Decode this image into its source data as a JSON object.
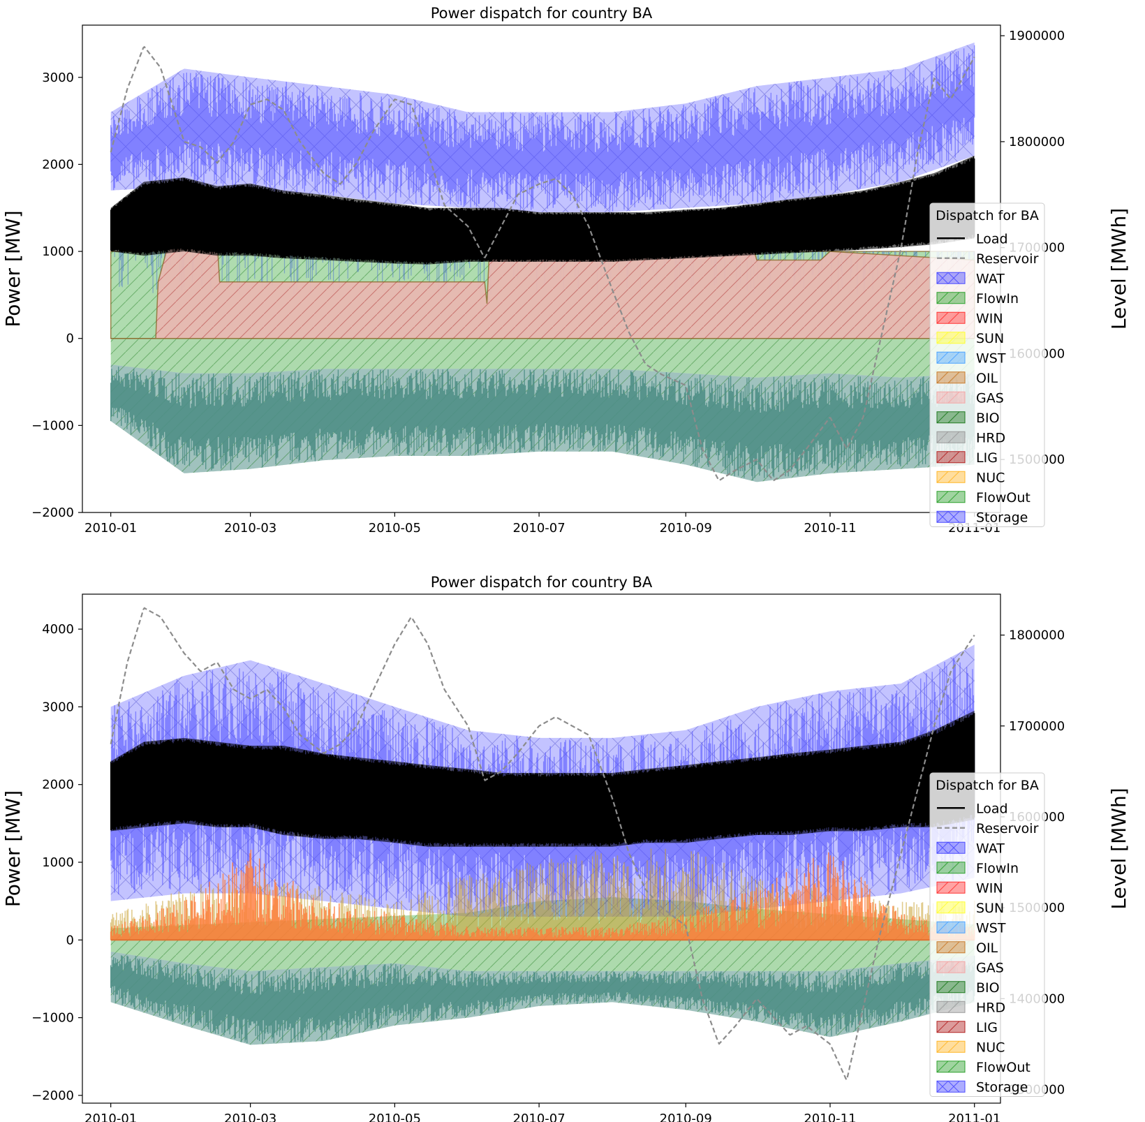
{
  "chart_data": [
    {
      "type": "area",
      "title": "Power dispatch for country BA",
      "ylabel": "Power [MW]",
      "ylabel_right": "Level [MWh]",
      "xlabel": "",
      "x_ticks": [
        "2010-01",
        "2010-03",
        "2010-05",
        "2010-07",
        "2010-09",
        "2010-11",
        "2011-01"
      ],
      "y_ticks": [
        -2000,
        -1000,
        0,
        1000,
        2000,
        3000
      ],
      "y_right_ticks": [
        1500000,
        1600000,
        1700000,
        1800000,
        1900000
      ],
      "xlim": [
        "2009-12-20",
        "2011-01-12"
      ],
      "ylim": [
        -2000,
        3600
      ],
      "ylim_right": [
        1450000,
        1910000
      ],
      "legend_title": "Dispatch for BA",
      "legend_entries": [
        "Load",
        "Reservoir",
        "WAT",
        "FlowIn",
        "WIN",
        "SUN",
        "WST",
        "OIL",
        "GAS",
        "BIO",
        "HRD",
        "LIG",
        "NUC",
        "FlowOut",
        "Storage"
      ],
      "legend_position": "right",
      "colors": {
        "Load": "#000000",
        "Reservoir": "#999999",
        "WAT": "#4a4aff",
        "FlowIn": "#2ca02c",
        "WIN": "#ff3333",
        "SUN": "#ffff33",
        "WST": "#4ba3ff",
        "OIL": "#c97a2b",
        "GAS": "#f4a6a6",
        "BIO": "#1f7a1f",
        "HRD": "#9a9a9a",
        "LIG": "#b22222",
        "NUC": "#ffb627",
        "FlowOut": "#2ca02c",
        "Storage": "#4a4aff"
      },
      "series": [
        {
          "name": "Load",
          "x": [
            "2010-01-01",
            "2010-01-15",
            "2010-02-01",
            "2010-02-15",
            "2010-03-01",
            "2010-03-15",
            "2010-04-01",
            "2010-04-15",
            "2010-05-01",
            "2010-05-15",
            "2010-06-01",
            "2010-06-15",
            "2010-07-01",
            "2010-07-15",
            "2010-08-01",
            "2010-08-15",
            "2010-09-01",
            "2010-09-15",
            "2010-10-01",
            "2010-10-15",
            "2010-11-01",
            "2010-11-15",
            "2010-12-01",
            "2010-12-15",
            "2011-01-01"
          ],
          "upper": [
            1500,
            1800,
            1850,
            1750,
            1780,
            1700,
            1650,
            1600,
            1550,
            1500,
            1500,
            1500,
            1450,
            1450,
            1450,
            1450,
            1480,
            1500,
            1550,
            1600,
            1650,
            1700,
            1800,
            1900,
            2100
          ],
          "lower": [
            1000,
            950,
            1000,
            950,
            950,
            920,
            900,
            880,
            860,
            850,
            880,
            880,
            880,
            880,
            880,
            900,
            920,
            940,
            960,
            980,
            1000,
            1020,
            1050,
            1080,
            1150
          ]
        },
        {
          "name": "Reservoir",
          "x": [
            "2010-01-01",
            "2010-01-08",
            "2010-01-15",
            "2010-01-22",
            "2010-02-01",
            "2010-02-08",
            "2010-02-15",
            "2010-02-22",
            "2010-03-01",
            "2010-03-08",
            "2010-03-15",
            "2010-03-22",
            "2010-04-01",
            "2010-04-08",
            "2010-04-15",
            "2010-04-22",
            "2010-05-01",
            "2010-05-08",
            "2010-05-15",
            "2010-05-22",
            "2010-06-01",
            "2010-06-08",
            "2010-06-15",
            "2010-06-22",
            "2010-07-01",
            "2010-07-08",
            "2010-07-15",
            "2010-07-22",
            "2010-08-01",
            "2010-08-08",
            "2010-08-15",
            "2010-08-22",
            "2010-09-01",
            "2010-09-08",
            "2010-09-15",
            "2010-09-22",
            "2010-10-01",
            "2010-10-08",
            "2010-10-15",
            "2010-10-22",
            "2010-11-01",
            "2010-11-08",
            "2010-11-15",
            "2010-11-22",
            "2010-12-01",
            "2010-12-08",
            "2010-12-15",
            "2010-12-22",
            "2011-01-01"
          ],
          "values": [
            1790000,
            1850000,
            1890000,
            1870000,
            1800000,
            1795000,
            1780000,
            1800000,
            1835000,
            1840000,
            1830000,
            1800000,
            1770000,
            1760000,
            1780000,
            1810000,
            1840000,
            1835000,
            1790000,
            1740000,
            1720000,
            1690000,
            1720000,
            1750000,
            1760000,
            1765000,
            1750000,
            1720000,
            1660000,
            1620000,
            1590000,
            1580000,
            1570000,
            1510000,
            1480000,
            1490000,
            1500000,
            1480000,
            1490000,
            1510000,
            1540000,
            1510000,
            1540000,
            1610000,
            1700000,
            1790000,
            1860000,
            1840000,
            1880000
          ]
        },
        {
          "name": "WAT",
          "x": [
            "2010-01-01",
            "2010-02-01",
            "2010-03-01",
            "2010-04-01",
            "2010-05-01",
            "2010-06-01",
            "2010-07-01",
            "2010-08-01",
            "2010-09-01",
            "2010-10-01",
            "2010-11-01",
            "2010-12-01",
            "2011-01-01"
          ],
          "upper": [
            2600,
            3100,
            3000,
            2900,
            2800,
            2600,
            2600,
            2600,
            2700,
            2900,
            3000,
            3100,
            3400
          ],
          "lower": [
            1700,
            1750,
            1700,
            1650,
            1550,
            1500,
            1450,
            1450,
            1500,
            1550,
            1650,
            1800,
            2100
          ]
        },
        {
          "name": "FlowIn",
          "x": [
            "2010-01-01",
            "2010-01-20",
            "2010-01-21",
            "2010-02-15",
            "2010-02-16",
            "2010-06-09",
            "2010-06-10",
            "2010-09-30",
            "2010-10-01",
            "2010-11-01",
            "2011-01-01"
          ],
          "values": [
            1000,
            1000,
            1050,
            1050,
            1000,
            1000,
            950,
            950,
            1000,
            1000,
            1000
          ]
        },
        {
          "name": "GAS",
          "x": [
            "2010-01-01",
            "2010-01-20",
            "2010-01-21",
            "2010-01-25",
            "2010-02-15",
            "2010-02-16",
            "2010-06-08",
            "2010-06-09",
            "2010-06-10",
            "2010-09-30",
            "2010-10-01",
            "2010-10-28",
            "2010-11-01",
            "2011-01-01"
          ],
          "values": [
            0,
            0,
            650,
            1050,
            1100,
            650,
            650,
            400,
            1000,
            1000,
            900,
            900,
            1000,
            900
          ]
        },
        {
          "name": "FlowOut",
          "x": [
            "2010-01-01",
            "2010-02-01",
            "2010-03-01",
            "2010-04-01",
            "2010-05-01",
            "2010-06-01",
            "2010-07-01",
            "2010-08-01",
            "2010-09-01",
            "2010-10-01",
            "2010-11-01",
            "2010-12-01",
            "2011-01-01"
          ],
          "upper": [
            -300,
            -400,
            -400,
            -350,
            -350,
            -350,
            -350,
            -350,
            -400,
            -450,
            -400,
            -450,
            -400
          ],
          "lower": [
            -950,
            -1550,
            -1500,
            -1400,
            -1350,
            -1350,
            -1300,
            -1300,
            -1450,
            -1650,
            -1550,
            -1500,
            -1450
          ]
        }
      ]
    },
    {
      "type": "area",
      "title": "Power dispatch for country BA",
      "ylabel": "Power [MW]",
      "ylabel_right": "Level [MWh]",
      "xlabel": "",
      "x_ticks": [
        "2010-01",
        "2010-03",
        "2010-05",
        "2010-07",
        "2010-09",
        "2010-11",
        "2011-01"
      ],
      "y_ticks": [
        -2000,
        -1000,
        0,
        1000,
        2000,
        3000,
        4000
      ],
      "y_right_ticks": [
        1300000,
        1400000,
        1500000,
        1600000,
        1700000,
        1800000
      ],
      "xlim": [
        "2009-12-20",
        "2011-01-12"
      ],
      "ylim": [
        -2100,
        4450
      ],
      "ylim_right": [
        1285000,
        1845000
      ],
      "legend_title": "Dispatch for BA",
      "legend_entries": [
        "Load",
        "Reservoir",
        "WAT",
        "FlowIn",
        "WIN",
        "SUN",
        "WST",
        "OIL",
        "GAS",
        "BIO",
        "HRD",
        "LIG",
        "NUC",
        "FlowOut",
        "Storage"
      ],
      "legend_position": "right",
      "colors": {
        "Load": "#000000",
        "Reservoir": "#999999",
        "WAT": "#4a4aff",
        "FlowIn": "#2ca02c",
        "WIN": "#ff3333",
        "SUN": "#ffff33",
        "WST": "#4ba3ff",
        "OIL": "#c97a2b",
        "GAS": "#f4a6a6",
        "BIO": "#1f7a1f",
        "HRD": "#9a9a9a",
        "LIG": "#b22222",
        "NUC": "#ffb627",
        "FlowOut": "#2ca02c",
        "Storage": "#4a4aff"
      },
      "series": [
        {
          "name": "Load",
          "x": [
            "2010-01-01",
            "2010-01-15",
            "2010-02-01",
            "2010-02-15",
            "2010-03-01",
            "2010-03-15",
            "2010-04-01",
            "2010-04-15",
            "2010-05-01",
            "2010-05-15",
            "2010-06-01",
            "2010-06-15",
            "2010-07-01",
            "2010-07-15",
            "2010-08-01",
            "2010-08-15",
            "2010-09-01",
            "2010-09-15",
            "2010-10-01",
            "2010-10-15",
            "2010-11-01",
            "2010-11-15",
            "2010-12-01",
            "2010-12-15",
            "2011-01-01"
          ],
          "upper": [
            2300,
            2550,
            2600,
            2550,
            2500,
            2500,
            2400,
            2350,
            2300,
            2250,
            2200,
            2150,
            2150,
            2150,
            2150,
            2200,
            2250,
            2300,
            2350,
            2400,
            2450,
            2500,
            2550,
            2700,
            2950
          ],
          "lower": [
            1400,
            1450,
            1500,
            1450,
            1450,
            1350,
            1300,
            1300,
            1250,
            1200,
            1200,
            1200,
            1200,
            1200,
            1200,
            1250,
            1250,
            1300,
            1350,
            1350,
            1400,
            1400,
            1450,
            1450,
            1550
          ]
        },
        {
          "name": "Reservoir",
          "x": [
            "2010-01-01",
            "2010-01-08",
            "2010-01-15",
            "2010-01-22",
            "2010-02-01",
            "2010-02-08",
            "2010-02-15",
            "2010-02-22",
            "2010-03-01",
            "2010-03-08",
            "2010-03-15",
            "2010-03-22",
            "2010-04-01",
            "2010-04-08",
            "2010-04-15",
            "2010-04-22",
            "2010-05-01",
            "2010-05-08",
            "2010-05-15",
            "2010-05-22",
            "2010-06-01",
            "2010-06-08",
            "2010-06-15",
            "2010-06-22",
            "2010-07-01",
            "2010-07-08",
            "2010-07-15",
            "2010-07-22",
            "2010-08-01",
            "2010-08-08",
            "2010-08-15",
            "2010-08-22",
            "2010-09-01",
            "2010-09-08",
            "2010-09-15",
            "2010-09-22",
            "2010-10-01",
            "2010-10-08",
            "2010-10-15",
            "2010-10-22",
            "2010-11-01",
            "2010-11-08",
            "2010-11-15",
            "2010-11-22",
            "2010-12-01",
            "2010-12-08",
            "2010-12-15",
            "2010-12-22",
            "2011-01-01"
          ],
          "values": [
            1680000,
            1770000,
            1830000,
            1820000,
            1780000,
            1760000,
            1770000,
            1740000,
            1730000,
            1740000,
            1720000,
            1690000,
            1670000,
            1680000,
            1700000,
            1740000,
            1790000,
            1820000,
            1790000,
            1740000,
            1700000,
            1640000,
            1650000,
            1670000,
            1700000,
            1710000,
            1700000,
            1690000,
            1620000,
            1560000,
            1520000,
            1500000,
            1480000,
            1400000,
            1350000,
            1370000,
            1400000,
            1380000,
            1360000,
            1370000,
            1350000,
            1310000,
            1390000,
            1470000,
            1560000,
            1630000,
            1700000,
            1760000,
            1800000
          ]
        },
        {
          "name": "WAT",
          "x": [
            "2010-01-01",
            "2010-02-01",
            "2010-03-01",
            "2010-04-01",
            "2010-05-01",
            "2010-06-01",
            "2010-07-01",
            "2010-08-01",
            "2010-09-01",
            "2010-10-01",
            "2010-11-01",
            "2010-12-01",
            "2011-01-01"
          ],
          "upper": [
            3000,
            3400,
            3600,
            3300,
            3000,
            2700,
            2600,
            2600,
            2700,
            3000,
            3200,
            3300,
            3800
          ],
          "lower": [
            500,
            600,
            600,
            500,
            400,
            300,
            300,
            300,
            300,
            400,
            500,
            600,
            800
          ]
        },
        {
          "name": "GAS",
          "x": [
            "2010-01-01",
            "2010-02-01",
            "2010-03-01",
            "2010-04-01",
            "2010-05-01",
            "2010-06-01",
            "2010-07-01",
            "2010-08-01",
            "2010-09-01",
            "2010-10-01",
            "2010-11-01",
            "2010-12-01",
            "2011-01-01"
          ],
          "values": [
            100,
            300,
            700,
            300,
            200,
            100,
            100,
            100,
            200,
            400,
            700,
            200,
            100
          ]
        },
        {
          "name": "OIL",
          "x": [
            "2010-01-01",
            "2010-02-01",
            "2010-03-01",
            "2010-04-01",
            "2010-05-01",
            "2010-06-01",
            "2010-07-01",
            "2010-08-01",
            "2010-09-01",
            "2010-10-01",
            "2010-11-01",
            "2010-12-01",
            "2011-01-01"
          ],
          "values": [
            200,
            400,
            500,
            400,
            300,
            500,
            600,
            700,
            700,
            500,
            400,
            300,
            300
          ]
        },
        {
          "name": "FlowIn",
          "x": [
            "2010-01-01",
            "2010-06-01",
            "2010-07-01",
            "2010-08-01",
            "2010-09-01",
            "2010-10-01",
            "2011-01-01"
          ],
          "values": [
            150,
            350,
            500,
            550,
            500,
            400,
            200
          ]
        },
        {
          "name": "FlowOut",
          "x": [
            "2010-01-01",
            "2010-02-01",
            "2010-03-01",
            "2010-04-01",
            "2010-05-01",
            "2010-06-01",
            "2010-07-01",
            "2010-08-01",
            "2010-09-01",
            "2010-10-01",
            "2010-11-01",
            "2010-12-01",
            "2011-01-01"
          ],
          "upper": [
            -150,
            -300,
            -400,
            -350,
            -300,
            -400,
            -400,
            -400,
            -400,
            -400,
            -400,
            -300,
            -200
          ],
          "lower": [
            -800,
            -1100,
            -1350,
            -1300,
            -1100,
            -1000,
            -850,
            -800,
            -900,
            -1050,
            -1250,
            -1050,
            -800
          ]
        }
      ]
    }
  ]
}
